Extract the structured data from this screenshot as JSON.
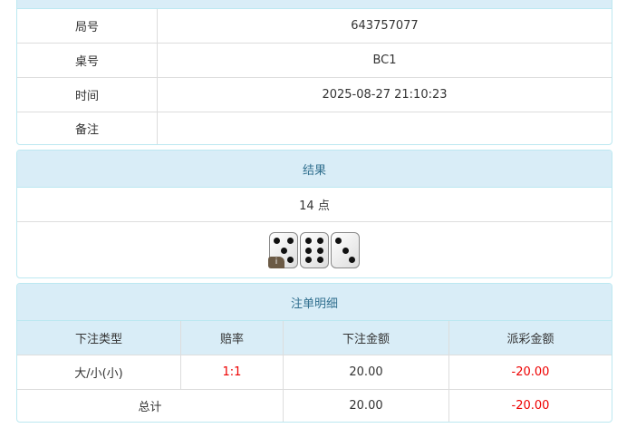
{
  "info": {
    "rows": [
      {
        "label": "局号",
        "value": "643757077"
      },
      {
        "label": "桌号",
        "value": "BC1"
      },
      {
        "label": "时间",
        "value": "2025-08-27 21:10:23"
      },
      {
        "label": "备注",
        "value": ""
      }
    ]
  },
  "result": {
    "title": "结果",
    "points": "14 点",
    "dice": [
      5,
      6,
      3
    ],
    "info_badge": "i"
  },
  "bets": {
    "title": "注单明细",
    "headers": [
      "下注类型",
      "赔率",
      "下注金额",
      "派彩金额"
    ],
    "row": {
      "type": "大/小(小)",
      "odds": "1:1",
      "amount": "20.00",
      "payout": "-20.00"
    },
    "total": {
      "label": "总计",
      "amount": "20.00",
      "payout": "-20.00"
    }
  },
  "colors": {
    "header_bg": "#d9edf7",
    "header_text": "#31708f",
    "negative": "#e00000"
  }
}
